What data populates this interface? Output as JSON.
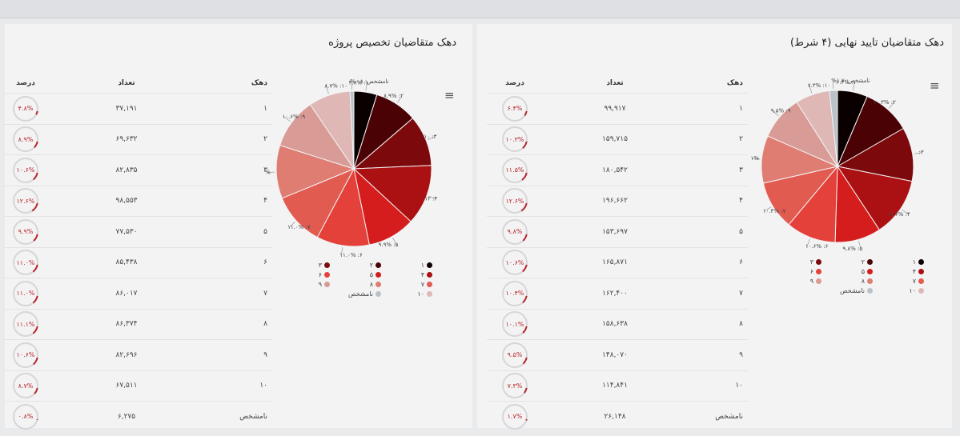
{
  "table_headers": {
    "dahak": "دهک",
    "count": "تعداد",
    "percent": "درصد"
  },
  "chart_data": [
    {
      "type": "pie",
      "title": "دهک متقاضیان تایید نهایی (۴ شرط)",
      "categories": [
        "۱",
        "۲",
        "۳",
        "۴",
        "۵",
        "۶",
        "۷",
        "۸",
        "۹",
        "۱۰",
        "نامشخص"
      ],
      "values": [
        6.4,
        10.3,
        11.5,
        12.6,
        9.8,
        10.6,
        10.4,
        10.1,
        9.5,
        7.3,
        1.7
      ],
      "counts": [
        "۹۹,۹۱۷",
        "۱۵۹,۷۱۵",
        "۱۸۰,۵۴۲",
        "۱۹۶,۶۶۲",
        "۱۵۳,۶۹۷",
        "۱۶۵,۸۷۱",
        "۱۶۲,۴۰۰",
        "۱۵۸,۶۳۸",
        "۱۴۸,۰۷۰",
        "۱۱۴,۸۴۱",
        "۲۶,۱۴۸"
      ],
      "percent_labels": [
        "۶.۴%",
        "۱۰.۳%",
        "۱۱.۵%",
        "۱۲.۶%",
        "۹.۸%",
        "۱۰.۶%",
        "۱۰.۴%",
        "۱۰.۱%",
        "۹.۵%",
        "۷.۳%",
        "۱.۷%"
      ],
      "slice_labels": [
        "۱: ۶.۴%",
        "۲: ۱۰.۳%",
        "۳:",
        "۴: ۱۲.۶%",
        "۵: ۹.۸%",
        "۶: ۱۰.۶%",
        "۷: ۱۰.۴%",
        "۱%",
        "۹: ۹.۵%",
        "۱۰: ۷.۳%",
        "نامشخص: ۱.۷%"
      ],
      "colors": [
        "#0b0000",
        "#4a0204",
        "#7c0a0c",
        "#ab1113",
        "#d41d1c",
        "#e4413b",
        "#e25b50",
        "#df7d73",
        "#d99b95",
        "#dfb8b6",
        "#b9c2c9"
      ],
      "legend": "bottom"
    },
    {
      "type": "pie",
      "title": "دهک متقاضیان تخصیص پروژه",
      "categories": [
        "۱",
        "۲",
        "۳",
        "۴",
        "۵",
        "۶",
        "۷",
        "۸",
        "۹",
        "۱۰",
        "نامشخص"
      ],
      "values": [
        4.8,
        8.9,
        10.6,
        12.6,
        9.9,
        11.0,
        11.0,
        11.1,
        10.6,
        8.7,
        0.8
      ],
      "counts": [
        "۳۷,۱۹۱",
        "۶۹,۶۳۲",
        "۸۲,۸۳۵",
        "۹۸,۵۵۳",
        "۷۷,۵۳۰",
        "۸۵,۴۳۸",
        "۸۶,۰۱۷",
        "۸۶,۳۷۴",
        "۸۲,۶۹۶",
        "۶۷,۵۱۱",
        "۶,۲۷۵"
      ],
      "percent_labels": [
        "۴.۸%",
        "۸.۹%",
        "۱۰.۶%",
        "۱۲.۶%",
        "۹.۹%",
        "۱۱.۰%",
        "۱۱.۰%",
        "۱۱.۱%",
        "۱۰.۶%",
        "۸.۷%",
        "۰.۸%"
      ],
      "slice_labels": [
        "۱: ۴.۸%",
        "۲: ۸.۹%",
        "۳: ۱۰",
        "۴: ۱۲",
        "۵: ۹.۹%",
        "۶: ۱۱.۰%",
        "۷: ۱۱.۰%",
        "%",
        "۹: ۱۰.۶%",
        "۱۰: ۸.۷%",
        "نامشخص: ۰.۸%"
      ],
      "colors": [
        "#0b0000",
        "#4a0204",
        "#7c0a0c",
        "#ab1113",
        "#d41d1c",
        "#e4413b",
        "#e25b50",
        "#df7d73",
        "#d99b95",
        "#dfb8b6",
        "#b9c2c9"
      ],
      "legend": "bottom"
    }
  ]
}
